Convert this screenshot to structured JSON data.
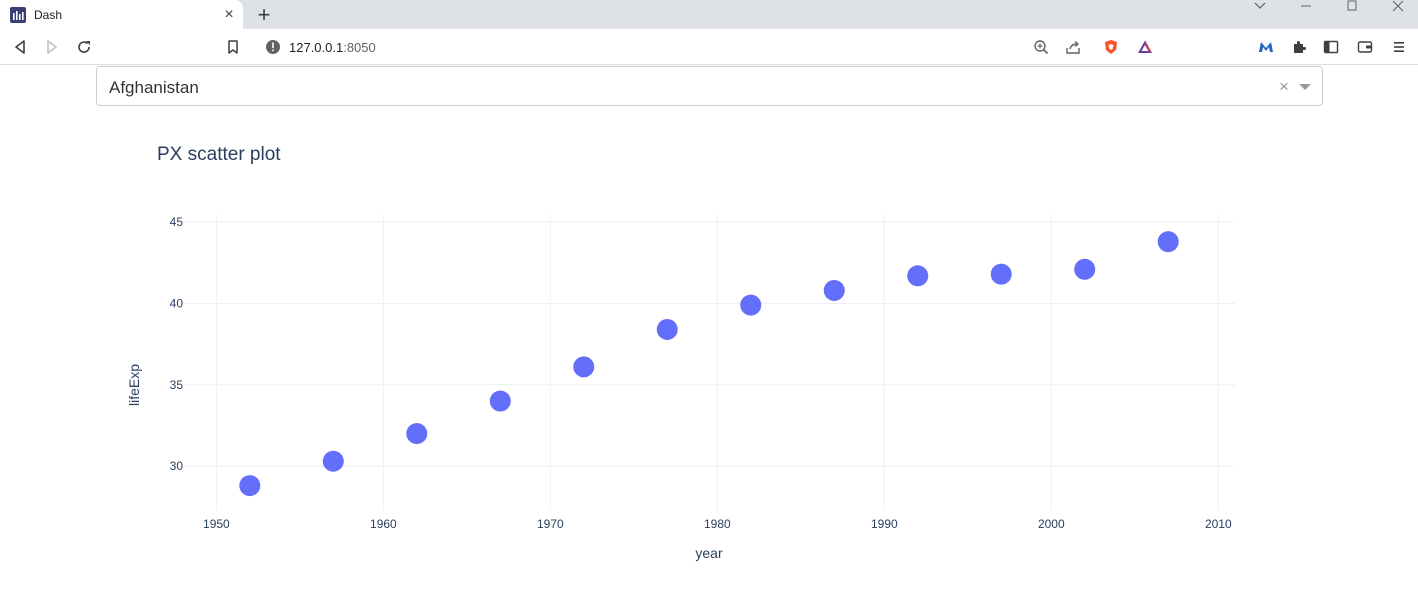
{
  "browser": {
    "tab_title": "Dash",
    "tab_close": "×",
    "new_tab": "+",
    "url_host": "127.0.0.1",
    "url_port": ":8050"
  },
  "dropdown": {
    "value": "Afghanistan",
    "clear": "×"
  },
  "chart_data": {
    "type": "scatter",
    "title": "PX scatter plot",
    "xlabel": "year",
    "ylabel": "lifeExp",
    "xlim": [
      1948,
      2011
    ],
    "ylim": [
      27.3,
      45.5
    ],
    "x_ticks": [
      1950,
      1960,
      1970,
      1980,
      1990,
      2000,
      2010
    ],
    "y_ticks": [
      30,
      35,
      40,
      45
    ],
    "grid": true,
    "marker_color": "#636efa",
    "series": [
      {
        "x": [
          1952,
          1957,
          1962,
          1967,
          1972,
          1977,
          1982,
          1987,
          1992,
          1997,
          2002,
          2007
        ],
        "y": [
          28.8,
          30.3,
          32.0,
          34.0,
          36.1,
          38.4,
          39.9,
          40.8,
          41.7,
          41.8,
          42.1,
          43.8
        ]
      }
    ]
  }
}
